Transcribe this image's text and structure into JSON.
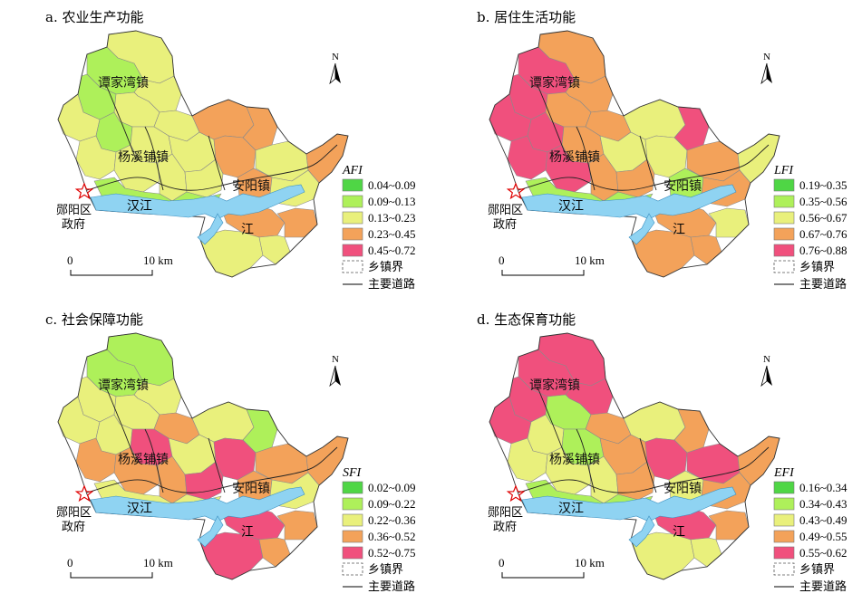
{
  "figure": {
    "colors": {
      "c1": "#4fd645",
      "c2": "#aef05a",
      "c3": "#e9f07c",
      "c4": "#f3a25a",
      "c5": "#f0507d",
      "river": "#8fd3f2",
      "star": "#e00000"
    },
    "labels": {
      "town_tanjiawan": "谭家湾镇",
      "town_yangxipu": "杨溪铺镇",
      "town_anyang": "安阳镇",
      "river_hanjiang": "汉江",
      "river_jiang": "江",
      "gov_line1": "郧阳区",
      "gov_line2": "政府",
      "scale_zero": "0",
      "scale_ten": "10 km",
      "north": "N",
      "legend_township": "乡镇界",
      "legend_road": "主要道路"
    },
    "panels": [
      {
        "title": "a. 农业生产功能",
        "legend_symbol": "AFI",
        "classes": [
          "0.04~0.09",
          "0.09~0.13",
          "0.13~0.23",
          "0.23~0.45",
          "0.45~0.72"
        ]
      },
      {
        "title": "b. 居住生活功能",
        "legend_symbol": "LFI",
        "classes": [
          "0.19~0.35",
          "0.35~0.56",
          "0.56~0.67",
          "0.67~0.76",
          "0.76~0.88"
        ]
      },
      {
        "title": "c. 社会保障功能",
        "legend_symbol": "SFI",
        "classes": [
          "0.02~0.09",
          "0.09~0.22",
          "0.22~0.36",
          "0.36~0.52",
          "0.52~0.75"
        ]
      },
      {
        "title": "d. 生态保育功能",
        "legend_symbol": "EFI",
        "classes": [
          "0.16~0.34",
          "0.34~0.43",
          "0.43~0.49",
          "0.49~0.55",
          "0.55~0.62"
        ]
      }
    ]
  }
}
